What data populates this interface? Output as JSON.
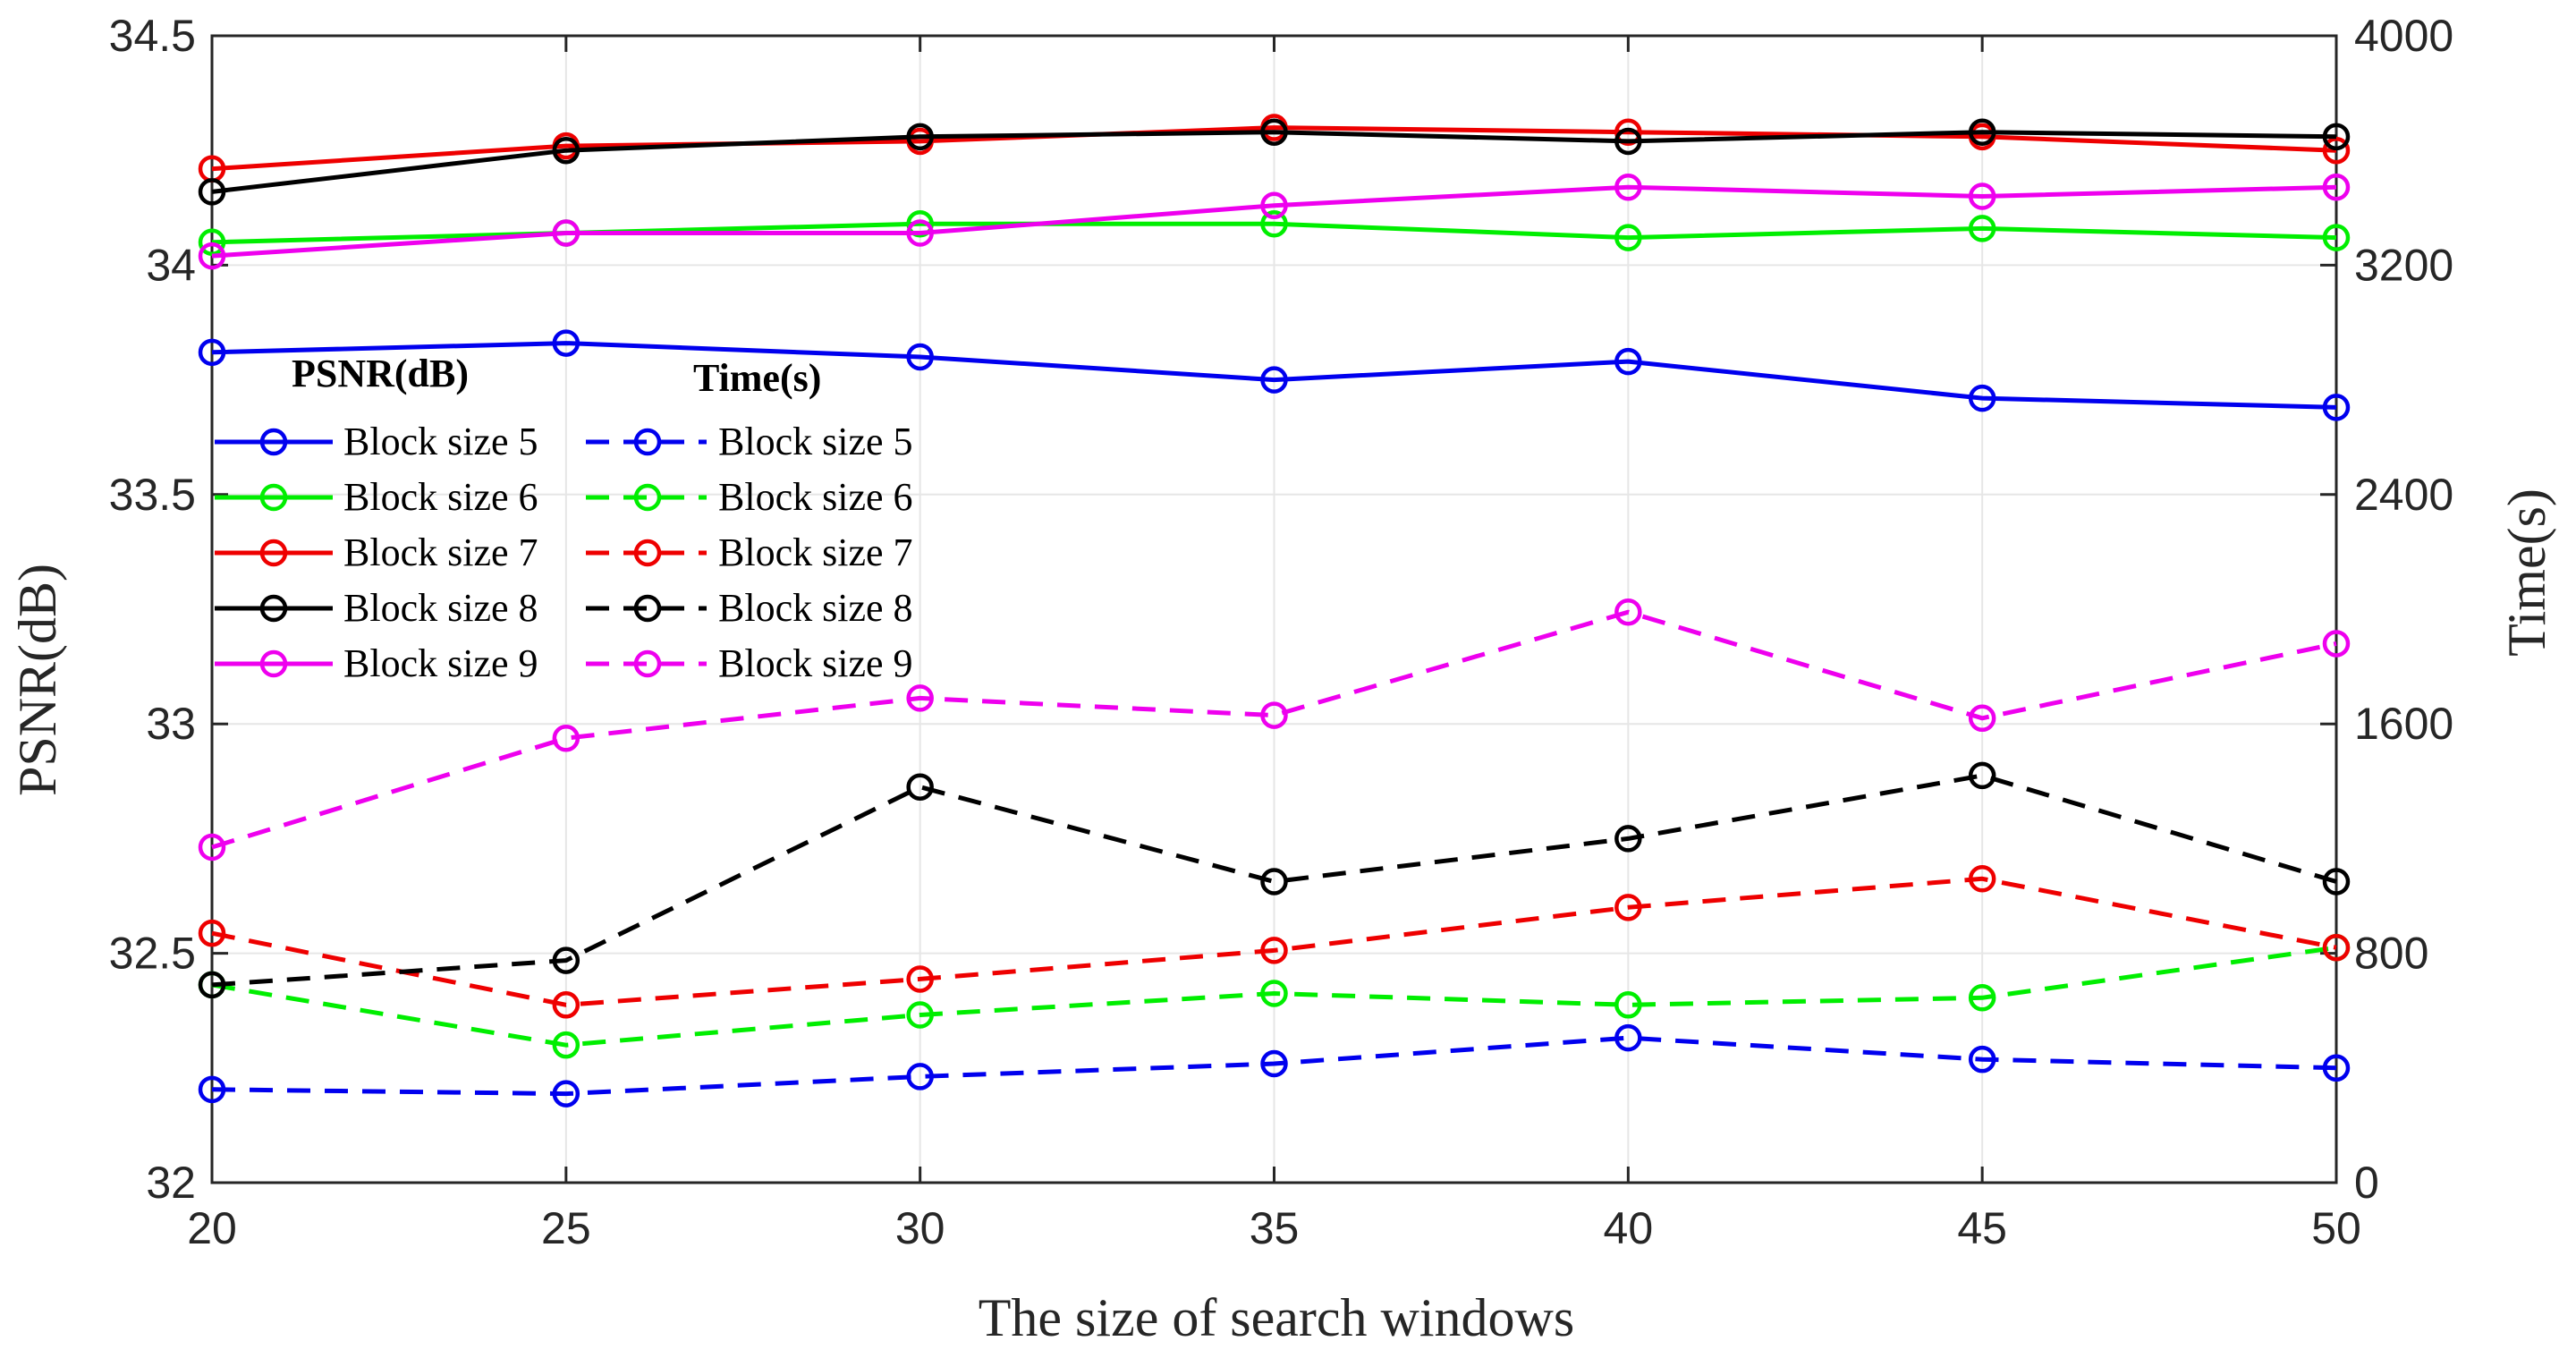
{
  "chart_data": {
    "type": "line",
    "title": "",
    "xlabel": "The size of search windows",
    "ylabel_left": "PSNR(dB)",
    "ylabel_right": "Time(s)",
    "x": [
      20,
      25,
      30,
      35,
      40,
      45,
      50
    ],
    "xlim": [
      20,
      50
    ],
    "xticks": [
      "20",
      "25",
      "30",
      "35",
      "40",
      "45",
      "50"
    ],
    "ylim_left": [
      32,
      34.5
    ],
    "yticks_left": [
      "32",
      "32.5",
      "33",
      "33.5",
      "34",
      "34.5"
    ],
    "ylim_right": [
      0,
      4000
    ],
    "yticks_right": [
      "0",
      "800",
      "1600",
      "2400",
      "3200",
      "4000"
    ],
    "grid": true,
    "legend_headers": [
      "PSNR(dB)",
      "Time(s)"
    ],
    "colors": {
      "Block size 5": "#0000ee",
      "Block size 6": "#00ee00",
      "Block size 7": "#ee0000",
      "Block size 8": "#000000",
      "Block size 9": "#ee00ee",
      "grid": "#e6e6e6",
      "axis": "#262626"
    },
    "psnr_series": [
      {
        "name": "Block size 5",
        "values": [
          33.81,
          33.83,
          33.8,
          33.75,
          33.79,
          33.71,
          33.69
        ]
      },
      {
        "name": "Block size 6",
        "values": [
          34.05,
          34.07,
          34.09,
          34.09,
          34.06,
          34.08,
          34.06
        ]
      },
      {
        "name": "Block size 7",
        "values": [
          34.21,
          34.26,
          34.27,
          34.3,
          34.29,
          34.28,
          34.25
        ]
      },
      {
        "name": "Block size 8",
        "values": [
          34.16,
          34.25,
          34.28,
          34.29,
          34.27,
          34.29,
          34.28
        ]
      },
      {
        "name": "Block size 9",
        "values": [
          34.02,
          34.07,
          34.07,
          34.13,
          34.17,
          34.15,
          34.17
        ]
      }
    ],
    "time_series": [
      {
        "name": "Block size 5",
        "values": [
          325,
          310,
          370,
          415,
          505,
          430,
          400
        ]
      },
      {
        "name": "Block size 6",
        "values": [
          690,
          480,
          585,
          660,
          620,
          645,
          820
        ]
      },
      {
        "name": "Block size 7",
        "values": [
          870,
          620,
          710,
          810,
          960,
          1060,
          820
        ]
      },
      {
        "name": "Block size 8",
        "values": [
          690,
          775,
          1380,
          1050,
          1200,
          1420,
          1050
        ]
      },
      {
        "name": "Block size 9",
        "values": [
          1170,
          1550,
          1690,
          1630,
          1990,
          1620,
          1880
        ]
      }
    ]
  }
}
